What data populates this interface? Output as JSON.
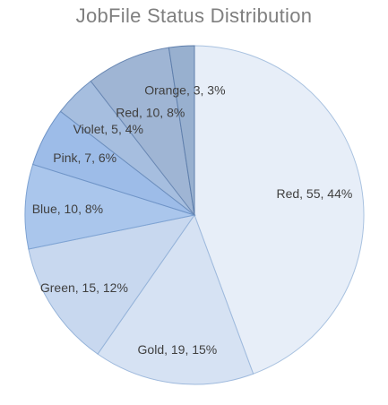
{
  "chart_data": {
    "type": "pie",
    "title": "JobFile Status Distribution",
    "slices": [
      {
        "label": "Red, 55, 44%",
        "name": "Red",
        "value": 55,
        "percent": 44,
        "fill": "#e7eef8",
        "stroke": "#a9c2e0"
      },
      {
        "label": "Gold, 19, 15%",
        "name": "Gold",
        "value": 19,
        "percent": 15,
        "fill": "#d6e2f3",
        "stroke": "#9fbadd"
      },
      {
        "label": "Green, 15, 12%",
        "name": "Green",
        "value": 15,
        "percent": 12,
        "fill": "#c8d8ef",
        "stroke": "#95b3d9"
      },
      {
        "label": "Blue, 10, 8%",
        "name": "Blue",
        "value": 10,
        "percent": 8,
        "fill": "#aac6ec",
        "stroke": "#7ea3d3"
      },
      {
        "label": "Pink, 7, 6%",
        "name": "Pink",
        "value": 7,
        "percent": 6,
        "fill": "#9dbce8",
        "stroke": "#6f94c7"
      },
      {
        "label": "Violet, 5, 4%",
        "name": "Violet",
        "value": 5,
        "percent": 4,
        "fill": "#a6bedf",
        "stroke": "#6d8fbd"
      },
      {
        "label": "Red, 10, 8%",
        "name": "Red",
        "value": 10,
        "percent": 8,
        "fill": "#9fb5d4",
        "stroke": "#6a88b3"
      },
      {
        "label": "Orange, 3, 3%",
        "name": "Orange",
        "value": 3,
        "percent": 3,
        "fill": "#98b0cf",
        "stroke": "#5f7fac"
      }
    ]
  }
}
